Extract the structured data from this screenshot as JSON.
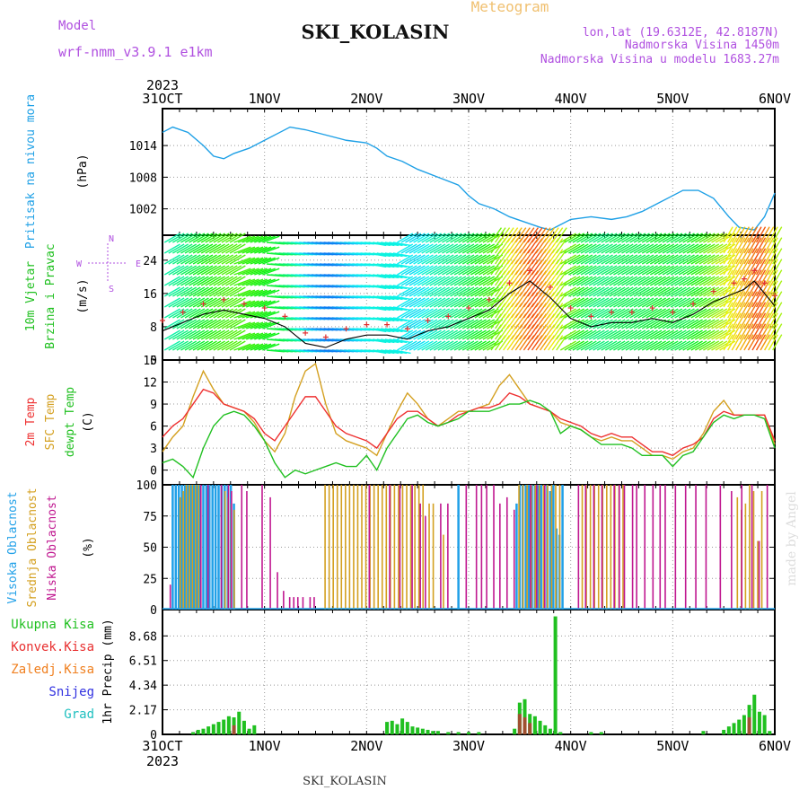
{
  "header": {
    "model_label": "Model",
    "model_value": "wrf-nmm_v3.9.1 e1km",
    "title": "SKI_KOLASIN",
    "meteogram": "Meteogram",
    "lonlat": "lon,lat (19.6312E, 42.8187N)",
    "elevation": "Nadmorska Visina 1450m",
    "model_elevation": "Nadmorska Visina u modelu 1683.27m",
    "footer_title": "SKI_KOLASIN",
    "watermark": "made by Angel"
  },
  "colors": {
    "pressure": "#1ea0e6",
    "temp2m": "#ee3030",
    "sfc_temp": "#d4a020",
    "dewpt": "#20c020",
    "high_cloud": "#20a0e8",
    "mid_cloud": "#d4a020",
    "low_cloud": "#c01890",
    "total_precip": "#20c020",
    "conv_precip": "#e83030",
    "frozen_precip": "#f08020",
    "snow": "#3030e0",
    "hail": "#20c0c0",
    "model_label": "#b050e0",
    "meteogram": "#f0c070"
  },
  "chart_data": [
    {
      "type": "line",
      "panel": "pressure",
      "ylabel": [
        "Pritisak na nivou mora",
        "(hPa)"
      ],
      "x_ticks_top": {
        "year": "2023",
        "labels": [
          "31OCT",
          "1NOV",
          "2NOV",
          "3NOV",
          "4NOV",
          "5NOV",
          "6NOV"
        ]
      },
      "x_range_days": [
        0,
        6
      ],
      "ylim": [
        997,
        1021
      ],
      "yticks": [
        "1002",
        "1008",
        "1014"
      ],
      "ytick_values": [
        1002,
        1008,
        1014
      ],
      "grid": true,
      "series": [
        {
          "x": [
            0,
            0.1,
            0.25,
            0.4,
            0.5,
            0.6,
            0.7,
            0.85,
            1.0,
            1.15,
            1.25,
            1.4,
            1.6,
            1.8,
            2.0,
            2.1,
            2.2,
            2.35,
            2.5,
            2.7,
            2.9,
            3.0,
            3.1,
            3.25,
            3.4,
            3.55,
            3.7,
            3.8,
            3.9,
            4.0,
            4.2,
            4.4,
            4.55,
            4.7,
            4.85,
            5.0,
            5.1,
            5.25,
            5.4,
            5.55,
            5.65,
            5.8,
            5.9,
            6.0
          ],
          "values": [
            1016.5,
            1017.5,
            1016.5,
            1014,
            1012,
            1011.5,
            1012.5,
            1013.5,
            1015,
            1016.5,
            1017.5,
            1017,
            1016,
            1015,
            1014.5,
            1013.5,
            1012,
            1011,
            1009.5,
            1008,
            1006.5,
            1004.5,
            1003,
            1002,
            1000.5,
            999.5,
            998.5,
            998,
            999,
            1000,
            1000.5,
            1000,
            1000.5,
            1001.5,
            1003,
            1004.5,
            1005.5,
            1005.5,
            1004,
            1000.5,
            998.5,
            998,
            1000.5,
            1005
          ]
        }
      ]
    },
    {
      "type": "line",
      "panel": "wind",
      "ylabel": [
        "10m Vjetar",
        "Brzina i Pravac",
        "(m/s)"
      ],
      "compass": [
        "N",
        "E",
        "W",
        "S"
      ],
      "ylim": [
        0,
        30
      ],
      "yticks": [
        "0",
        "8",
        "16",
        "24"
      ],
      "ytick_values": [
        0,
        8,
        16,
        24
      ],
      "grid": true,
      "series": [
        {
          "name": "black",
          "x": [
            0,
            0.2,
            0.4,
            0.6,
            0.8,
            1.0,
            1.2,
            1.4,
            1.6,
            1.8,
            2.0,
            2.2,
            2.4,
            2.6,
            2.8,
            3.0,
            3.2,
            3.4,
            3.6,
            3.8,
            4.0,
            4.2,
            4.4,
            4.6,
            4.8,
            5.0,
            5.2,
            5.4,
            5.6,
            5.7,
            5.8,
            5.9,
            6.0
          ],
          "values": [
            7,
            9,
            11,
            12,
            11,
            10,
            8,
            4,
            3,
            5,
            6,
            6,
            5,
            7,
            8,
            10,
            12,
            16,
            19,
            15,
            10,
            8,
            9,
            9,
            10,
            9,
            11,
            14,
            16,
            17,
            19,
            16,
            13
          ]
        }
      ],
      "markers": "+"
    },
    {
      "type": "line",
      "panel": "temperature",
      "ylabel": [
        "2m Temp",
        "SFC Temp",
        "dewpt Temp",
        "(C)"
      ],
      "ylim": [
        -2,
        15
      ],
      "yticks": [
        "0",
        "3",
        "6",
        "9",
        "12",
        "15"
      ],
      "ytick_values": [
        0,
        3,
        6,
        9,
        12,
        15
      ],
      "grid": true,
      "x": [
        0,
        0.1,
        0.2,
        0.3,
        0.4,
        0.5,
        0.6,
        0.7,
        0.8,
        0.9,
        1.0,
        1.1,
        1.2,
        1.3,
        1.4,
        1.5,
        1.6,
        1.7,
        1.8,
        1.9,
        2.0,
        2.1,
        2.2,
        2.3,
        2.4,
        2.5,
        2.6,
        2.7,
        2.8,
        2.9,
        3.0,
        3.1,
        3.2,
        3.3,
        3.4,
        3.5,
        3.6,
        3.7,
        3.8,
        3.9,
        4.0,
        4.1,
        4.2,
        4.3,
        4.4,
        4.5,
        4.6,
        4.7,
        4.8,
        4.9,
        5.0,
        5.1,
        5.2,
        5.3,
        5.4,
        5.5,
        5.6,
        5.7,
        5.8,
        5.9,
        6.0
      ],
      "series": [
        {
          "name": "2m Temp",
          "values": [
            4.5,
            6,
            7,
            9,
            11,
            10.5,
            9,
            8.5,
            8,
            7,
            5,
            4,
            6,
            8,
            10,
            10,
            8,
            6,
            5,
            4.5,
            4,
            3,
            5,
            7,
            8,
            8,
            7,
            6,
            6.5,
            7.5,
            8,
            8.5,
            8.5,
            9,
            10.5,
            10,
            9,
            8.5,
            8,
            7,
            6.5,
            6,
            5,
            4.5,
            5,
            4.5,
            4.5,
            3.5,
            2.5,
            2.5,
            2,
            3,
            3.5,
            4.5,
            7,
            8,
            7.5,
            7.5,
            7.5,
            7.5,
            4
          ]
        },
        {
          "name": "SFC Temp",
          "values": [
            2.5,
            4.5,
            6,
            10,
            13.5,
            11,
            9,
            8.5,
            8,
            6.5,
            4,
            2.5,
            5,
            10,
            13.5,
            14.5,
            9,
            5,
            4,
            3.5,
            3,
            2,
            5,
            8,
            10.5,
            9,
            7,
            6,
            7,
            8,
            8,
            8.5,
            9,
            11.5,
            13,
            11,
            9,
            8.5,
            8,
            6.5,
            6,
            5.5,
            4.5,
            4,
            4.5,
            4,
            4,
            3,
            2,
            2,
            1.5,
            2.5,
            3,
            5,
            8,
            9.5,
            7.5,
            7.5,
            7.5,
            7.5,
            3.5
          ]
        },
        {
          "name": "dewpt Temp",
          "values": [
            1,
            1.5,
            0.5,
            -1,
            3,
            6,
            7.5,
            8,
            7.5,
            6,
            4,
            1,
            -1,
            0,
            -0.5,
            0,
            0.5,
            1,
            0.5,
            0.5,
            2,
            0,
            3,
            5,
            7,
            7.5,
            6.5,
            6,
            6.5,
            7,
            8,
            8,
            8,
            8.5,
            9,
            9,
            9.5,
            9,
            8,
            5,
            6,
            5.5,
            4.5,
            3.5,
            3.5,
            3.5,
            3,
            2,
            2,
            2,
            0.5,
            2,
            2.5,
            4.5,
            6.5,
            7.5,
            7,
            7.5,
            7.5,
            7,
            3
          ]
        }
      ]
    },
    {
      "type": "bar",
      "panel": "cloud",
      "ylabel": [
        "Visoka Oblacnost",
        "Srednja Oblacnost",
        "Niska Oblacnost",
        "(%)"
      ],
      "ylim": [
        0,
        100
      ],
      "yticks": [
        "0",
        "25",
        "50",
        "75",
        "100"
      ],
      "ytick_values": [
        0,
        25,
        50,
        75,
        100
      ],
      "grid": true,
      "series": [
        {
          "name": "Visoka Oblacnost",
          "x": [
            0.1,
            0.13,
            0.16,
            0.19,
            0.22,
            0.25,
            0.28,
            0.31,
            0.34,
            0.37,
            0.4,
            0.43,
            0.46,
            0.49,
            0.52,
            0.55,
            0.58,
            0.61,
            0.64,
            0.67,
            0.7,
            2.9,
            3.47,
            3.5,
            3.53,
            3.56,
            3.59,
            3.62,
            3.65,
            3.68,
            3.71,
            3.74,
            3.77,
            3.8,
            3.83,
            3.86,
            3.89,
            3.92
          ],
          "values": [
            100,
            100,
            100,
            100,
            100,
            100,
            100,
            100,
            100,
            100,
            100,
            100,
            100,
            100,
            100,
            100,
            100,
            100,
            100,
            100,
            85,
            100,
            85,
            100,
            100,
            100,
            100,
            100,
            100,
            100,
            100,
            100,
            100,
            95,
            100,
            65,
            60,
            100
          ]
        },
        {
          "name": "Srednja Oblacnost",
          "x": [
            0.16,
            0.19,
            0.22,
            0.25,
            0.28,
            0.31,
            0.34,
            0.6,
            0.63,
            0.66,
            0.69,
            1.58,
            1.62,
            1.66,
            1.7,
            1.74,
            1.78,
            1.82,
            1.86,
            1.9,
            1.94,
            1.98,
            2.02,
            2.06,
            2.1,
            2.14,
            2.18,
            2.22,
            2.26,
            2.3,
            2.34,
            2.38,
            2.42,
            2.46,
            2.5,
            2.54,
            2.6,
            2.64,
            2.74,
            3.48,
            3.52,
            3.56,
            3.6,
            3.64,
            3.68,
            3.72,
            3.76,
            3.8,
            3.84,
            3.88,
            4.1,
            4.14,
            4.18,
            4.22,
            4.26,
            4.3,
            4.34,
            4.38,
            4.42,
            4.46,
            4.5,
            5.62,
            5.66,
            5.7,
            5.74,
            5.78,
            5.82,
            5.86
          ],
          "values": [
            90,
            95,
            100,
            100,
            100,
            100,
            100,
            95,
            90,
            85,
            80,
            100,
            100,
            100,
            100,
            100,
            100,
            100,
            100,
            100,
            100,
            100,
            100,
            100,
            100,
            100,
            100,
            100,
            100,
            100,
            100,
            100,
            100,
            100,
            100,
            100,
            85,
            85,
            60,
            100,
            100,
            100,
            100,
            100,
            100,
            100,
            100,
            100,
            100,
            100,
            100,
            100,
            100,
            100,
            100,
            100,
            100,
            100,
            100,
            100,
            100,
            90,
            80,
            85,
            100,
            95,
            55,
            95
          ]
        },
        {
          "name": "Niska Oblacnost",
          "x": [
            0.05,
            0.35,
            0.42,
            0.55,
            0.62,
            0.65,
            0.75,
            0.8,
            0.95,
            1.03,
            1.1,
            1.16,
            1.22,
            1.26,
            1.3,
            1.35,
            1.42,
            1.46,
            2.0,
            2.2,
            2.3,
            2.42,
            2.5,
            2.55,
            2.7,
            2.77,
            2.95,
            3.05,
            3.1,
            3.15,
            3.22,
            3.28,
            3.35,
            3.42,
            3.58,
            3.64,
            3.72,
            4.05,
            4.12,
            4.2,
            4.28,
            4.4,
            4.45,
            4.5,
            4.58,
            4.62,
            4.7,
            4.78,
            4.85,
            4.9,
            5.0,
            5.1,
            5.2,
            5.3,
            5.44,
            5.55,
            5.65,
            5.75,
            5.82,
            5.9
          ],
          "values": [
            20,
            100,
            100,
            100,
            100,
            95,
            100,
            95,
            100,
            90,
            30,
            15,
            10,
            10,
            10,
            10,
            10,
            10,
            100,
            100,
            100,
            100,
            85,
            75,
            85,
            85,
            100,
            100,
            100,
            100,
            100,
            85,
            90,
            80,
            100,
            100,
            100,
            100,
            100,
            100,
            100,
            100,
            100,
            100,
            100,
            100,
            100,
            100,
            100,
            100,
            100,
            100,
            100,
            100,
            100,
            95,
            100,
            100,
            55,
            100
          ]
        }
      ]
    },
    {
      "type": "bar",
      "panel": "precip",
      "ylabel": [
        "1hr Precip (mm)"
      ],
      "legend": [
        "Ukupna Kisa",
        "Konvek.Kisa",
        "Zaledj.Kisa",
        "Snijeg",
        "Grad"
      ],
      "ylim": [
        0,
        11
      ],
      "yticks": [
        "0",
        "2.17",
        "4.34",
        "6.51",
        "8.68"
      ],
      "ytick_values": [
        0,
        2.17,
        4.34,
        6.51,
        8.68
      ],
      "grid": true,
      "x_ticks_bottom": {
        "year": "2023",
        "labels": [
          "31OCT",
          "1NOV",
          "2NOV",
          "3NOV",
          "4NOV",
          "5NOV",
          "6NOV"
        ]
      },
      "series": [
        {
          "name": "Ukupna Kisa",
          "x": [
            0.3,
            0.35,
            0.4,
            0.45,
            0.5,
            0.55,
            0.6,
            0.65,
            0.7,
            0.75,
            0.8,
            0.85,
            0.9,
            2.2,
            2.25,
            2.3,
            2.35,
            2.4,
            2.45,
            2.5,
            2.55,
            2.6,
            2.65,
            2.7,
            2.8,
            2.9,
            3.0,
            3.1,
            3.45,
            3.5,
            3.55,
            3.6,
            3.65,
            3.7,
            3.75,
            3.8,
            3.85,
            3.9,
            4.2,
            4.3,
            5.3,
            5.5,
            5.55,
            5.6,
            5.65,
            5.7,
            5.75,
            5.8,
            5.85,
            5.9,
            5.95
          ],
          "values": [
            0.2,
            0.4,
            0.5,
            0.7,
            0.9,
            1.1,
            1.3,
            1.6,
            1.5,
            2.0,
            1.2,
            0.5,
            0.8,
            1.1,
            1.2,
            0.9,
            1.4,
            1.1,
            0.7,
            0.6,
            0.5,
            0.4,
            0.3,
            0.3,
            0.2,
            0.2,
            0.2,
            0.2,
            0.5,
            2.8,
            3.1,
            1.8,
            1.6,
            1.2,
            0.8,
            0.5,
            10.4,
            0.2,
            0.2,
            0.2,
            0.3,
            0.4,
            0.7,
            1.0,
            1.3,
            1.7,
            2.6,
            3.5,
            2.0,
            1.7,
            0.3
          ]
        },
        {
          "name": "Konvek.Kisa",
          "x": [
            0.7,
            3.5,
            3.55,
            3.6,
            5.75
          ],
          "values": [
            0.8,
            1.8,
            1.5,
            1.0,
            1.5
          ]
        }
      ]
    }
  ]
}
